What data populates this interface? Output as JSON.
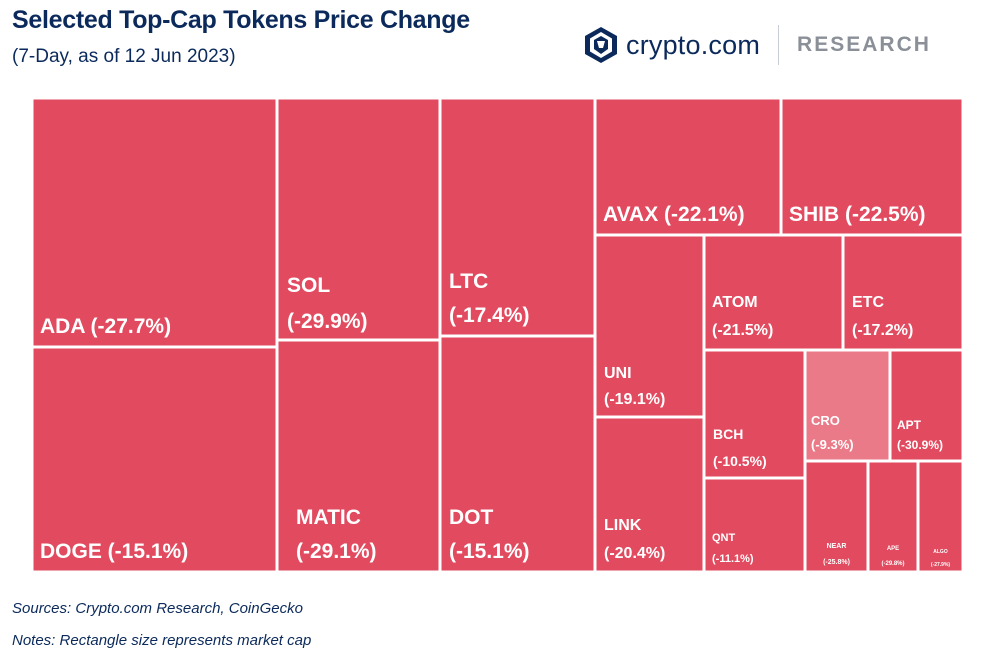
{
  "header": {
    "title": "Selected Top-Cap Tokens Price Change",
    "subtitle": "(7-Day, as of 12 Jun 2023)"
  },
  "logo": {
    "brand": "crypto.com",
    "section": "RESEARCH",
    "icon": "crypto-com-lion-shield-icon"
  },
  "footer": {
    "sources": "Sources: Crypto.com Research, CoinGecko",
    "notes": "Notes: Rectangle size represents market cap"
  },
  "colors": {
    "tile": "#e14a5f",
    "tile_light": "#ea7a88",
    "border": "#ffffff",
    "title": "#0b2a5b"
  },
  "chart_data": {
    "type": "treemap",
    "title": "Selected Top-Cap Tokens Price Change",
    "subtitle": "(7-Day, as of 12 Jun 2023)",
    "tiles": [
      {
        "token": "ADA",
        "change": -27.7,
        "label": "ADA (-27.7%)"
      },
      {
        "token": "DOGE",
        "change": -15.1,
        "label": "DOGE (-15.1%)"
      },
      {
        "token": "SOL",
        "change": -29.9,
        "label": "SOL",
        "value_label": "(-29.9%)"
      },
      {
        "token": "MATIC",
        "change": -29.1,
        "label": "MATIC",
        "value_label": "(-29.1%)"
      },
      {
        "token": "LTC",
        "change": -17.4,
        "label": "LTC",
        "value_label": "(-17.4%)"
      },
      {
        "token": "DOT",
        "change": -15.1,
        "label": "DOT",
        "value_label": "(-15.1%)"
      },
      {
        "token": "AVAX",
        "change": -22.1,
        "label": "AVAX (-22.1%)"
      },
      {
        "token": "SHIB",
        "change": -22.5,
        "label": "SHIB (-22.5%)"
      },
      {
        "token": "UNI",
        "change": -19.1,
        "label": "UNI",
        "value_label": "(-19.1%)"
      },
      {
        "token": "LINK",
        "change": -20.4,
        "label": "LINK",
        "value_label": "(-20.4%)"
      },
      {
        "token": "ATOM",
        "change": -21.5,
        "label": "ATOM",
        "value_label": "(-21.5%)"
      },
      {
        "token": "ETC",
        "change": -17.2,
        "label": "ETC",
        "value_label": "(-17.2%)"
      },
      {
        "token": "BCH",
        "change": -10.5,
        "label": "BCH",
        "value_label": "(-10.5%)"
      },
      {
        "token": "CRO",
        "change": -9.3,
        "label": "CRO",
        "value_label": "(-9.3%)"
      },
      {
        "token": "APT",
        "change": -30.9,
        "label": "APT",
        "value_label": "(-30.9%)"
      },
      {
        "token": "QNT",
        "change": -11.1,
        "label": "QNT",
        "value_label": "(-11.1%)"
      },
      {
        "token": "NEAR",
        "change": -25.8,
        "label": "NEAR",
        "value_label": "(-25.8%)"
      },
      {
        "token": "APE",
        "change": -29.8,
        "label": "APE",
        "value_label": "(-29.8%)"
      },
      {
        "token": "ALGO",
        "change": -27.9,
        "label": "ALGO",
        "value_label": "(-27.9%)"
      }
    ]
  }
}
